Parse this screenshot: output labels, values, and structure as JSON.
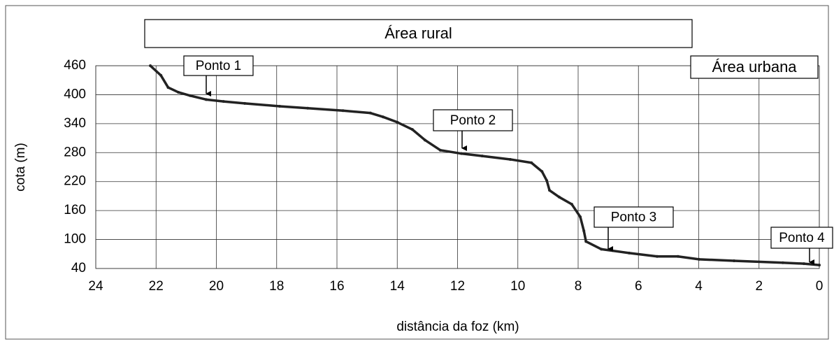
{
  "chart_data": {
    "type": "line",
    "x": [
      22.19,
      21.84,
      21.6,
      21.26,
      20.87,
      20.34,
      19.76,
      19.06,
      17.9,
      16.97,
      15.8,
      14.89,
      14.47,
      14.0,
      13.5,
      13.08,
      12.57,
      11.87,
      11.18,
      10.25,
      9.55,
      9.2,
      9.04,
      8.95,
      8.63,
      8.21,
      7.93,
      7.81,
      7.74,
      7.23,
      6.31,
      5.38,
      4.69,
      3.99,
      2.83,
      1.21,
      0.51,
      0
    ],
    "values": [
      460,
      440,
      415,
      405,
      398,
      390,
      386,
      382,
      376,
      372,
      367,
      362,
      354,
      343,
      328,
      306,
      285,
      278,
      273,
      266,
      259,
      241,
      222,
      202,
      188,
      173,
      147,
      118,
      96,
      80,
      72,
      65,
      65,
      59,
      56,
      52,
      50,
      47
    ],
    "color": "#222222",
    "xlabel": "distância da foz (km)",
    "ylabel": "cota (m)",
    "xlim": [
      24,
      0
    ],
    "xticks": [
      24,
      22,
      20,
      18,
      16,
      14,
      12,
      10,
      8,
      6,
      4,
      2,
      0
    ],
    "ylim": [
      40,
      460
    ],
    "yticks": [
      40,
      100,
      160,
      220,
      280,
      340,
      400,
      460
    ],
    "grid": true,
    "annotations": [
      "Área rural",
      "Área urbana",
      "Ponto 1",
      "Ponto 2",
      "Ponto 3",
      "Ponto 4"
    ]
  }
}
